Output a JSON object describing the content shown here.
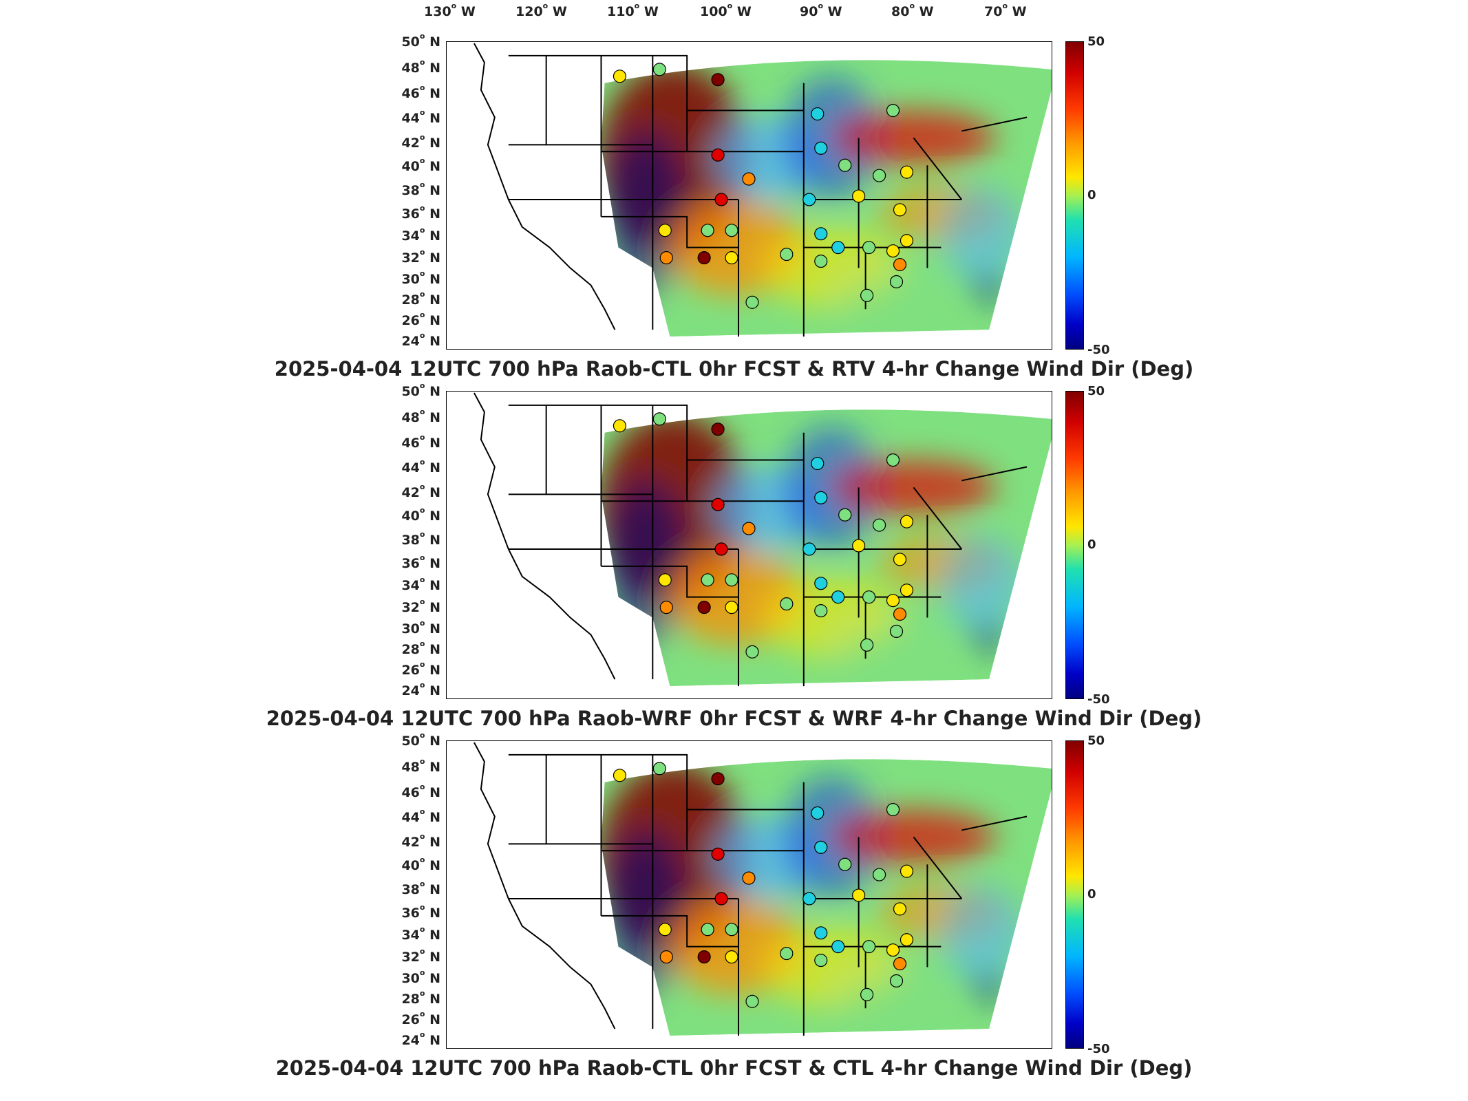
{
  "longitude_labels": [
    {
      "deg": "130",
      "suffix": "W"
    },
    {
      "deg": "120",
      "suffix": "W"
    },
    {
      "deg": "110",
      "suffix": "W"
    },
    {
      "deg": "100",
      "suffix": "W"
    },
    {
      "deg": "90",
      "suffix": "W"
    },
    {
      "deg": "80",
      "suffix": "W"
    },
    {
      "deg": "70",
      "suffix": "W"
    }
  ],
  "latitude_labels": [
    {
      "deg": "50",
      "suffix": "N"
    },
    {
      "deg": "48",
      "suffix": "N"
    },
    {
      "deg": "46",
      "suffix": "N"
    },
    {
      "deg": "44",
      "suffix": "N"
    },
    {
      "deg": "42",
      "suffix": "N"
    },
    {
      "deg": "40",
      "suffix": "N"
    },
    {
      "deg": "38",
      "suffix": "N"
    },
    {
      "deg": "36",
      "suffix": "N"
    },
    {
      "deg": "34",
      "suffix": "N"
    },
    {
      "deg": "32",
      "suffix": "N"
    },
    {
      "deg": "30",
      "suffix": "N"
    },
    {
      "deg": "28",
      "suffix": "N"
    },
    {
      "deg": "26",
      "suffix": "N"
    },
    {
      "deg": "24",
      "suffix": "N"
    }
  ],
  "colorbar": {
    "max": "50",
    "mid": "0",
    "min": "-50"
  },
  "colors": {
    "dark_red": "#800000",
    "red": "#e00000",
    "orange": "#ff8c00",
    "yellow": "#ffe600",
    "green": "#7fe07f",
    "cyan": "#20d0e0",
    "light_blue": "#50b0ff",
    "blue": "#1040e0",
    "dark_blue": "#000080"
  },
  "panels": [
    {
      "title": "2025-04-04 12UTC 700 hPa Raob-CTL 0hr FCST & RTV 4-hr Change Wind Dir (Deg)"
    },
    {
      "title": "2025-04-04 12UTC 700 hPa Raob-WRF 0hr FCST & WRF 4-hr Change Wind Dir (Deg)"
    },
    {
      "title": "2025-04-04 12UTC 700 hPa Raob-CTL 0hr FCST & CTL 4-hr Change Wind Dir (Deg)"
    }
  ]
}
